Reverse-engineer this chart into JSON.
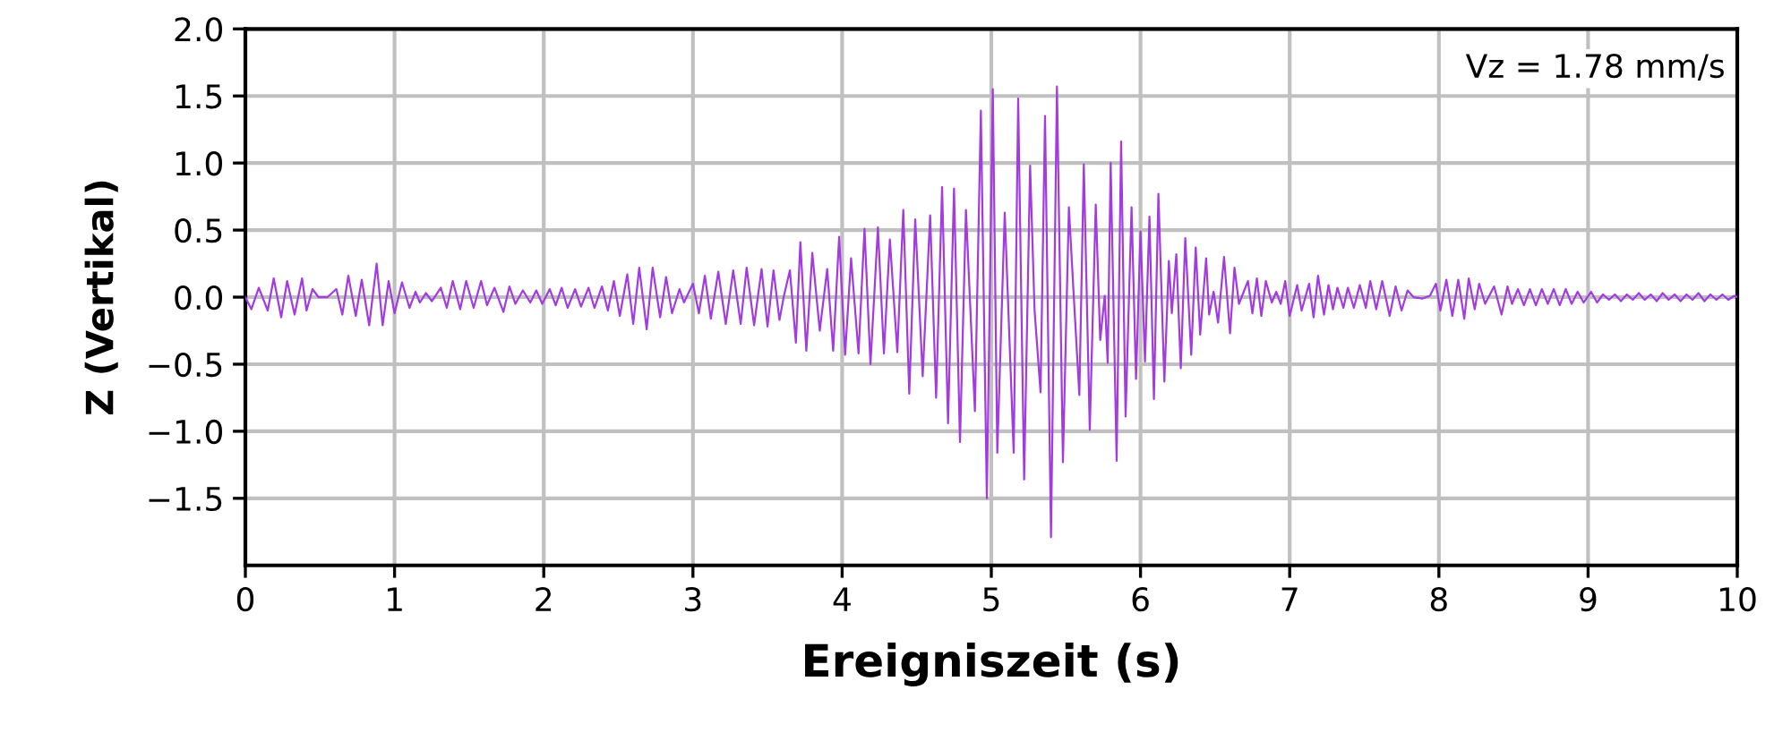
{
  "chart_data": {
    "type": "line",
    "xlabel": "Ereigniszeit (s)",
    "ylabel": "Z (Vertikal)",
    "annotations": [
      "Vz = 1.78 mm/s"
    ],
    "xlim": [
      0,
      10
    ],
    "xticks": [
      0,
      1,
      2,
      3,
      4,
      5,
      6,
      7,
      8,
      9,
      10
    ],
    "ylim": [
      -2.0,
      2.0
    ],
    "yticks": [
      {
        "value": 2.0,
        "label": "2.0"
      },
      {
        "value": 1.5,
        "label": "1.5"
      },
      {
        "value": 1.0,
        "label": "1.0"
      },
      {
        "value": 0.5,
        "label": "0.5"
      },
      {
        "value": 0.0,
        "label": "0.0"
      },
      {
        "value": -0.5,
        "label": "−0.5"
      },
      {
        "value": -1.0,
        "label": "−1.0"
      },
      {
        "value": -1.5,
        "label": "−1.5"
      }
    ],
    "grid": true,
    "line_style": "solid",
    "series": [
      {
        "color": "#a23be0",
        "x": [
          0.0,
          0.04,
          0.09,
          0.15,
          0.19,
          0.24,
          0.28,
          0.33,
          0.38,
          0.41,
          0.45,
          0.49,
          0.55,
          0.61,
          0.65,
          0.69,
          0.74,
          0.78,
          0.83,
          0.88,
          0.92,
          0.96,
          1.0,
          1.05,
          1.1,
          1.14,
          1.17,
          1.21,
          1.25,
          1.31,
          1.35,
          1.39,
          1.44,
          1.48,
          1.53,
          1.58,
          1.62,
          1.67,
          1.73,
          1.77,
          1.81,
          1.86,
          1.91,
          1.95,
          1.99,
          2.04,
          2.08,
          2.12,
          2.16,
          2.21,
          2.25,
          2.3,
          2.34,
          2.39,
          2.43,
          2.47,
          2.51,
          2.56,
          2.6,
          2.64,
          2.69,
          2.73,
          2.78,
          2.82,
          2.86,
          2.91,
          2.94,
          3.0,
          3.04,
          3.08,
          3.12,
          3.17,
          3.22,
          3.27,
          3.32,
          3.36,
          3.41,
          3.46,
          3.5,
          3.54,
          3.58,
          3.61,
          3.65,
          3.69,
          3.72,
          3.76,
          3.8,
          3.85,
          3.9,
          3.94,
          3.98,
          4.02,
          4.06,
          4.11,
          4.15,
          4.19,
          4.24,
          4.28,
          4.32,
          4.37,
          4.41,
          4.45,
          4.49,
          4.54,
          4.59,
          4.63,
          4.67,
          4.71,
          4.75,
          4.79,
          4.83,
          4.89,
          4.93,
          4.97,
          5.01,
          5.04,
          5.09,
          5.15,
          5.18,
          5.22,
          5.26,
          5.29,
          5.33,
          5.36,
          5.4,
          5.44,
          5.48,
          5.52,
          5.55,
          5.59,
          5.62,
          5.66,
          5.7,
          5.73,
          5.76,
          5.78,
          5.8,
          5.84,
          5.87,
          5.9,
          5.94,
          5.97,
          6.0,
          6.03,
          6.06,
          6.09,
          6.12,
          6.16,
          6.19,
          6.21,
          6.24,
          6.27,
          6.3,
          6.34,
          6.37,
          6.4,
          6.44,
          6.46,
          6.49,
          6.52,
          6.56,
          6.6,
          6.63,
          6.66,
          6.72,
          6.75,
          6.78,
          6.81,
          6.84,
          6.88,
          6.91,
          6.94,
          6.97,
          7.0,
          7.05,
          7.08,
          7.13,
          7.16,
          7.19,
          7.23,
          7.26,
          7.29,
          7.32,
          7.36,
          7.39,
          7.43,
          7.47,
          7.51,
          7.54,
          7.58,
          7.62,
          7.67,
          7.71,
          7.75,
          7.79,
          7.83,
          7.89,
          7.94,
          7.98,
          8.01,
          8.05,
          8.09,
          8.13,
          8.17,
          8.2,
          8.24,
          8.27,
          8.31,
          8.37,
          8.42,
          8.46,
          8.49,
          8.53,
          8.57,
          8.61,
          8.65,
          8.69,
          8.73,
          8.77,
          8.81,
          8.85,
          8.89,
          8.93,
          8.97,
          9.02,
          9.06,
          9.1,
          9.14,
          9.18,
          9.22,
          9.26,
          9.3,
          9.34,
          9.38,
          9.42,
          9.46,
          9.5,
          9.54,
          9.58,
          9.62,
          9.66,
          9.7,
          9.74,
          9.78,
          9.82,
          9.86,
          9.9,
          9.94,
          9.98,
          10.0
        ],
        "values": [
          0.0,
          -0.09,
          0.07,
          -0.1,
          0.14,
          -0.15,
          0.12,
          -0.13,
          0.14,
          -0.1,
          0.06,
          0.0,
          0.0,
          0.06,
          -0.13,
          0.16,
          -0.14,
          0.13,
          -0.21,
          0.25,
          -0.21,
          0.12,
          -0.12,
          0.11,
          -0.08,
          0.04,
          -0.04,
          0.03,
          -0.03,
          0.07,
          -0.08,
          0.12,
          -0.09,
          0.12,
          -0.08,
          0.12,
          -0.06,
          0.07,
          -0.11,
          0.08,
          -0.05,
          0.05,
          -0.04,
          0.05,
          -0.05,
          0.06,
          -0.06,
          0.07,
          -0.08,
          0.06,
          -0.07,
          0.07,
          -0.08,
          0.08,
          -0.1,
          0.12,
          -0.14,
          0.17,
          -0.2,
          0.22,
          -0.24,
          0.22,
          -0.15,
          0.15,
          -0.12,
          0.06,
          -0.04,
          0.1,
          -0.12,
          0.16,
          -0.16,
          0.19,
          -0.2,
          0.2,
          -0.2,
          0.22,
          -0.21,
          0.21,
          -0.22,
          0.2,
          -0.17,
          0.01,
          0.2,
          -0.34,
          0.41,
          -0.4,
          0.33,
          -0.25,
          0.21,
          -0.4,
          0.45,
          -0.43,
          0.29,
          -0.42,
          0.51,
          -0.5,
          0.52,
          -0.42,
          0.43,
          -0.41,
          0.65,
          -0.72,
          0.58,
          -0.59,
          0.61,
          -0.75,
          0.82,
          -0.94,
          0.81,
          -1.08,
          0.65,
          -0.85,
          1.39,
          -1.5,
          1.55,
          -1.16,
          0.63,
          -1.16,
          1.48,
          -1.36,
          0.98,
          -0.1,
          -0.71,
          1.35,
          -1.79,
          1.57,
          -1.23,
          0.67,
          0.06,
          -0.73,
          0.99,
          -0.99,
          0.69,
          -0.32,
          0.01,
          -0.49,
          1.0,
          -1.22,
          1.16,
          -0.89,
          0.67,
          -0.61,
          0.49,
          -0.48,
          0.6,
          -0.76,
          0.77,
          -0.63,
          0.27,
          -0.12,
          0.32,
          -0.53,
          0.44,
          -0.43,
          0.37,
          -0.28,
          0.29,
          -0.13,
          0.04,
          -0.19,
          0.3,
          -0.27,
          0.22,
          -0.05,
          0.12,
          -0.12,
          0.14,
          -0.14,
          0.12,
          -0.04,
          0.04,
          -0.05,
          0.12,
          -0.14,
          0.09,
          -0.1,
          0.1,
          -0.15,
          0.16,
          -0.13,
          0.09,
          -0.09,
          0.07,
          -0.08,
          0.07,
          -0.08,
          0.09,
          -0.08,
          0.12,
          -0.09,
          0.12,
          -0.14,
          0.08,
          -0.1,
          0.05,
          0.0,
          -0.01,
          0.01,
          0.1,
          -0.1,
          0.13,
          -0.14,
          0.13,
          -0.16,
          0.14,
          -0.09,
          0.1,
          -0.05,
          0.08,
          -0.13,
          0.08,
          -0.05,
          0.06,
          -0.06,
          0.06,
          -0.06,
          0.06,
          -0.05,
          0.06,
          -0.06,
          0.06,
          -0.05,
          0.04,
          -0.04,
          0.04,
          -0.04,
          0.02,
          -0.02,
          0.02,
          -0.03,
          0.02,
          -0.02,
          0.03,
          -0.02,
          0.02,
          -0.03,
          0.03,
          -0.02,
          0.02,
          -0.03,
          0.02,
          -0.02,
          0.03,
          -0.03,
          0.02,
          -0.02,
          0.02,
          -0.02,
          0.01,
          0.0
        ]
      }
    ]
  }
}
